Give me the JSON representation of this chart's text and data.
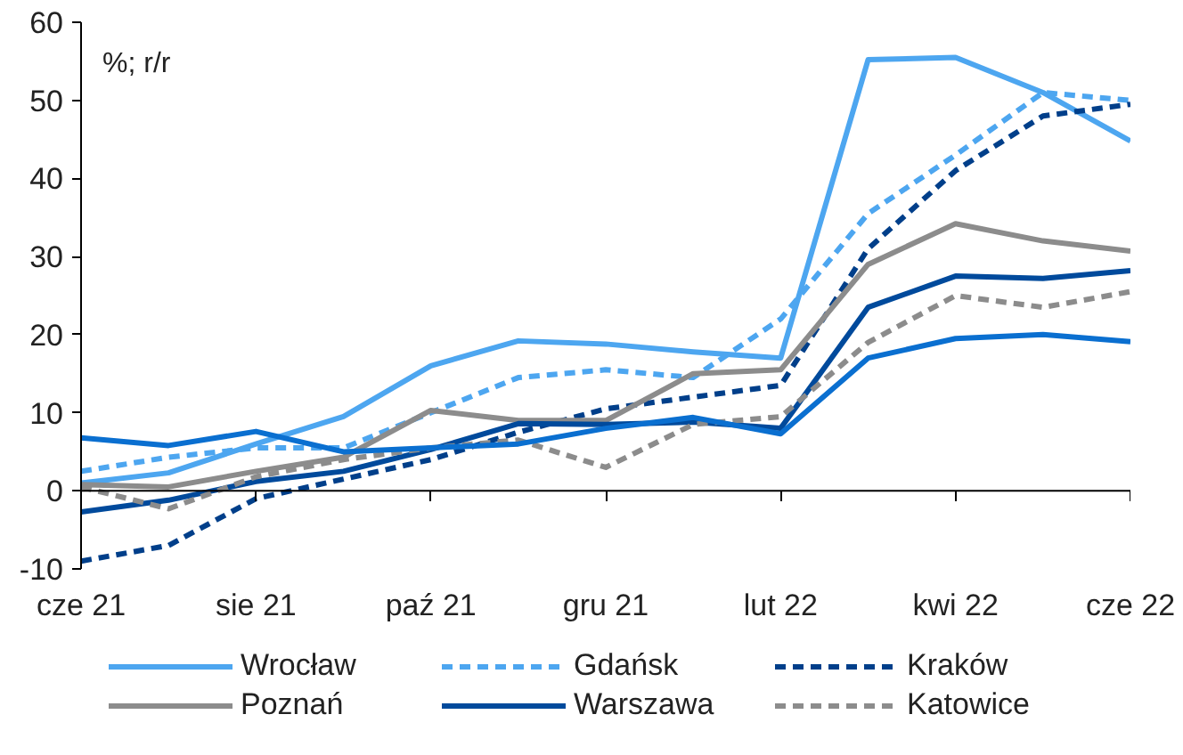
{
  "chart_data": {
    "type": "line",
    "annotations": [
      "%; r/r"
    ],
    "categories": [
      "cze 21",
      null,
      "sie 21",
      null,
      "paź 21",
      null,
      "gru 21",
      null,
      "lut 22",
      null,
      "kwi 22",
      null,
      "cze 22"
    ],
    "ylim": [
      -10,
      60
    ],
    "yticks": [
      -10,
      0,
      10,
      20,
      30,
      40,
      50,
      60
    ],
    "grid": false,
    "legend": "bottom",
    "ref_lines": [
      {
        "axis": "y",
        "value": 0
      }
    ],
    "series": [
      {
        "name": "Wrocław",
        "color": "#4da6f0",
        "line_style": "solid",
        "values": [
          1,
          2.3,
          6,
          9.5,
          16,
          19.2,
          18.8,
          17.8,
          17,
          55.2,
          55.5,
          51,
          44.8
        ]
      },
      {
        "name": "Gdańsk",
        "color": "#4da6f0",
        "line_style": "dashed",
        "values": [
          2.5,
          4.3,
          5.5,
          5.5,
          10,
          14.5,
          15.5,
          14.5,
          22,
          35.5,
          43,
          51,
          50
        ]
      },
      {
        "name": "Kraków",
        "color": "#003f8a",
        "line_style": "dashed",
        "values": [
          -9,
          -7,
          -1,
          1.5,
          4,
          7.5,
          10.5,
          12,
          13.5,
          31,
          41,
          48,
          49.5
        ]
      },
      {
        "name": "Poznań",
        "color": "#8c8c8c",
        "line_style": "solid",
        "values": [
          0.8,
          0.5,
          2.5,
          4.3,
          10.3,
          9,
          9,
          15,
          15.5,
          29,
          34.2,
          32,
          30.7
        ]
      },
      {
        "name": "Warszawa",
        "color": "#004a9c",
        "line_style": "solid",
        "values": [
          -2.7,
          -1.2,
          1.2,
          2.5,
          5.3,
          8.6,
          8.5,
          8.8,
          8,
          23.5,
          27.5,
          27.2,
          28.2
        ]
      },
      {
        "name": "Katowice",
        "color": "#8c8c8c",
        "line_style": "dashed",
        "values": [
          0.5,
          -2.3,
          1.8,
          4,
          5.5,
          6.5,
          3,
          8.5,
          9.5,
          19,
          25,
          23.5,
          25.5
        ]
      },
      {
        "color": "#0a6fd0",
        "line_style": "solid",
        "values": [
          6.8,
          5.8,
          7.6,
          5,
          5.5,
          6,
          8,
          9.4,
          7.3,
          17,
          19.5,
          20,
          19.1
        ]
      }
    ]
  }
}
